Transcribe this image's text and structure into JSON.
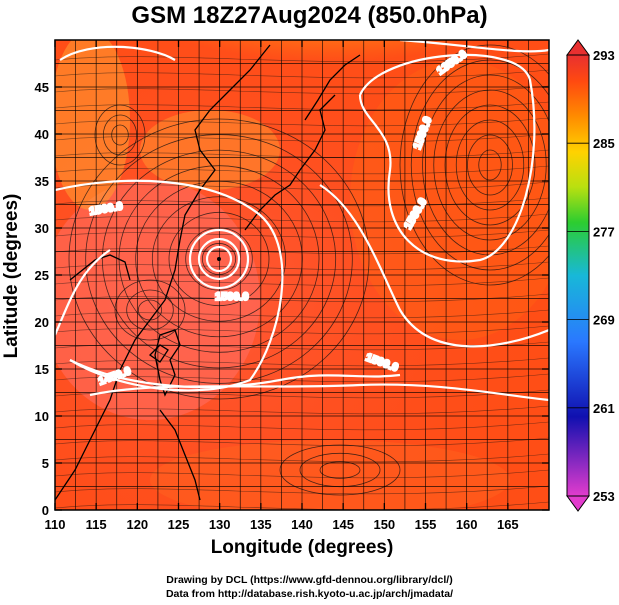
{
  "title": "GSM 18Z27Aug2024 (850.0hPa)",
  "xlabel": "Longitude (degrees)",
  "ylabel": "Latitude  (degrees)",
  "x_ticks": [
    "110",
    "115",
    "120",
    "125",
    "130",
    "135",
    "140",
    "145",
    "150",
    "155",
    "160",
    "165"
  ],
  "y_ticks": [
    "0",
    "5",
    "10",
    "15",
    "20",
    "25",
    "30",
    "35",
    "40",
    "45"
  ],
  "colorbar": {
    "ticks": [
      "253",
      "261",
      "269",
      "277",
      "285",
      "293"
    ],
    "colors": [
      "#e23ccd",
      "#1010b0",
      "#2a78ff",
      "#18b8d8",
      "#2ccd30",
      "#b8e010",
      "#ffd200",
      "#ff8c00",
      "#ff4a10",
      "#e83030"
    ]
  },
  "contours": [
    {
      "label": "1560.0"
    },
    {
      "label": "1560.0"
    },
    {
      "label": "1560.0"
    },
    {
      "label": "1500.0"
    },
    {
      "label": "1450.0"
    },
    {
      "label": "1350.0"
    },
    {
      "label": "1500.0"
    }
  ],
  "credits": [
    "Drawing by DCL (https://www.gfd-dennou.org/library/dcl/)",
    "Data from http://database.rish.kyoto-u.ac.jp/arch/jmadata/"
  ],
  "chart_data": {
    "type": "heatmap",
    "title": "GSM 18Z27Aug2024 (850.0hPa)",
    "xlabel": "Longitude (degrees)",
    "ylabel": "Latitude  (degrees)",
    "xlim": [
      110,
      170
    ],
    "ylim": [
      0,
      50
    ],
    "colorbar_range": [
      253,
      293
    ],
    "typhoon_center": {
      "lon": 130.0,
      "lat": 29.0
    }
  }
}
